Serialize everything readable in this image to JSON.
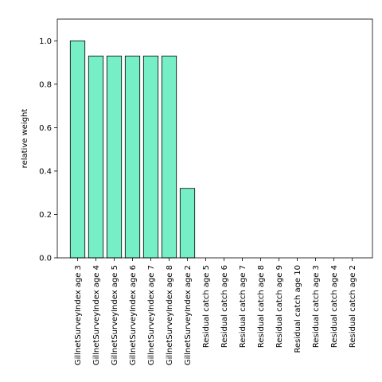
{
  "chart_data": {
    "type": "bar",
    "title": "",
    "xlabel": "",
    "ylabel": "relative weight",
    "ylim": [
      0,
      1.1
    ],
    "yticks": [
      "0.0",
      "0.2",
      "0.4",
      "0.6",
      "0.8",
      "1.0"
    ],
    "grid": false,
    "categories": [
      "GillnetSurveyIndex age 3",
      "GillnetSurveyIndex age 4",
      "GillnetSurveyIndex age 5",
      "GillnetSurveyIndex age 6",
      "GillnetSurveyIndex age 7",
      "GillnetSurveyIndex age 8",
      "GillnetSurveyIndex age 2",
      "Residual catch age 5",
      "Residual catch age 6",
      "Residual catch age 7",
      "Residual catch age 8",
      "Residual catch age 9",
      "Residual catch age 10",
      "Residual catch age 3",
      "Residual catch age 4",
      "Residual catch age 2"
    ],
    "values": [
      1.0,
      0.93,
      0.93,
      0.93,
      0.93,
      0.93,
      0.32,
      0,
      0,
      0,
      0,
      0,
      0,
      0,
      0,
      0
    ],
    "bar_color": "#76eec6",
    "edge_color": "#000000"
  }
}
